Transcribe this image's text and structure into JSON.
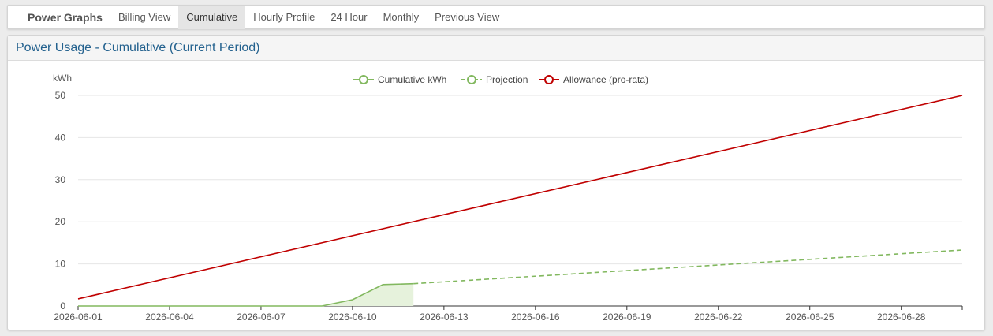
{
  "nav": {
    "brand": "Power Graphs",
    "tabs": [
      {
        "label": "Billing View",
        "active": false
      },
      {
        "label": "Cumulative",
        "active": true
      },
      {
        "label": "Hourly Profile",
        "active": false
      },
      {
        "label": "24 Hour",
        "active": false
      },
      {
        "label": "Monthly",
        "active": false
      },
      {
        "label": "Previous View",
        "active": false
      }
    ]
  },
  "panel": {
    "title": "Power Usage - Cumulative (Current Period)"
  },
  "colors": {
    "green": "#82b85f",
    "green_fill": "#e6f2dc",
    "red": "#c00000",
    "grid": "#e6e6e6",
    "axis": "#333333"
  },
  "chart_data": {
    "type": "line",
    "ylabel": "kWh",
    "ylim": [
      0,
      50
    ],
    "yticks": [
      0,
      10,
      20,
      30,
      40,
      50
    ],
    "xlim": [
      "2026-06-01",
      "2026-06-30"
    ],
    "xticks": [
      "2026-06-01",
      "2026-06-04",
      "2026-06-07",
      "2026-06-10",
      "2026-06-13",
      "2026-06-16",
      "2026-06-19",
      "2026-06-22",
      "2026-06-25",
      "2026-06-28"
    ],
    "legend_position": "top-center",
    "series": [
      {
        "name": "Cumulative kWh",
        "color": "#82b85f",
        "style": "solid",
        "fill": true,
        "points": [
          [
            "2026-06-01",
            0
          ],
          [
            "2026-06-03",
            0
          ],
          [
            "2026-06-06",
            0
          ],
          [
            "2026-06-09",
            0
          ],
          [
            "2026-06-10",
            1.5
          ],
          [
            "2026-06-11",
            5.1
          ],
          [
            "2026-06-12",
            5.3
          ]
        ]
      },
      {
        "name": "Projection",
        "color": "#82b85f",
        "style": "dashed",
        "fill": false,
        "points": [
          [
            "2026-06-12",
            5.3
          ],
          [
            "2026-06-30",
            13.3
          ]
        ]
      },
      {
        "name": "Allowance (pro-rata)",
        "color": "#c00000",
        "style": "solid",
        "fill": false,
        "points": [
          [
            "2026-06-01",
            1.7
          ],
          [
            "2026-06-30",
            50
          ]
        ]
      }
    ]
  }
}
